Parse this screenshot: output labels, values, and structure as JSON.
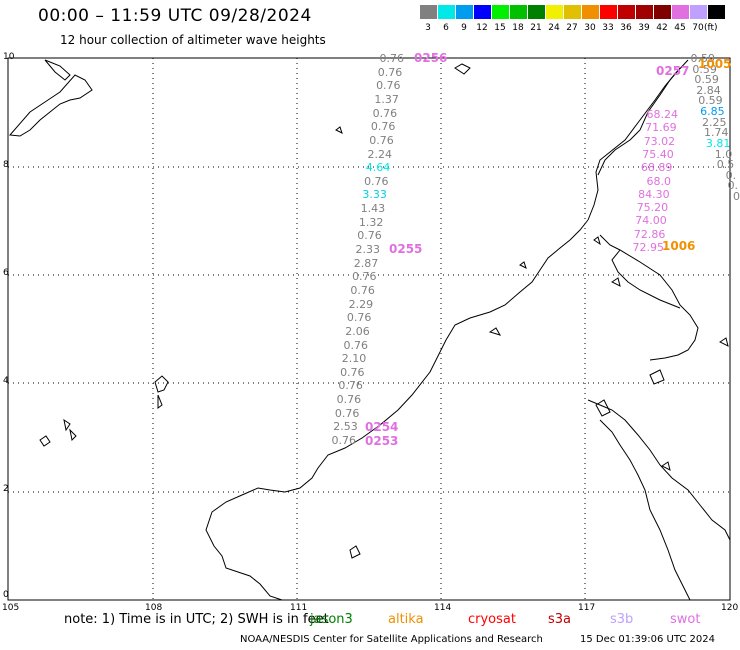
{
  "title": "00:00 – 11:59 UTC 09/28/2024",
  "subtitle": "12 hour collection of altimeter wave heights",
  "legend": {
    "unit": "(ft)",
    "bins": [
      {
        "label": "3",
        "color": "#808080"
      },
      {
        "label": "6",
        "color": "#00e8e8"
      },
      {
        "label": "9",
        "color": "#009cf0"
      },
      {
        "label": "12",
        "color": "#0000ff"
      },
      {
        "label": "15",
        "color": "#00f000"
      },
      {
        "label": "18",
        "color": "#00c000"
      },
      {
        "label": "21",
        "color": "#008000"
      },
      {
        "label": "24",
        "color": "#f0f000"
      },
      {
        "label": "27",
        "color": "#e0c000"
      },
      {
        "label": "30",
        "color": "#f09000"
      },
      {
        "label": "33",
        "color": "#ff0000"
      },
      {
        "label": "36",
        "color": "#c00000"
      },
      {
        "label": "39",
        "color": "#a00000"
      },
      {
        "label": "42",
        "color": "#800000"
      },
      {
        "label": "45",
        "color": "#e070e0"
      },
      {
        "label": "70",
        "color": "#c0a0ff"
      },
      {
        "label": "",
        "color": "#000000"
      }
    ]
  },
  "axes": {
    "x_ticks": [
      "105",
      "108",
      "111",
      "114",
      "117",
      "120"
    ],
    "y_ticks": [
      "0",
      "2",
      "4",
      "6",
      "8",
      "10"
    ]
  },
  "track_main": {
    "values": [
      {
        "v": "0.76",
        "c": "#808080"
      },
      {
        "v": "0.76",
        "c": "#808080"
      },
      {
        "v": "0.76",
        "c": "#808080"
      },
      {
        "v": "1.37",
        "c": "#808080"
      },
      {
        "v": "0.76",
        "c": "#808080"
      },
      {
        "v": "0.76",
        "c": "#808080"
      },
      {
        "v": "0.76",
        "c": "#808080"
      },
      {
        "v": "2.24",
        "c": "#808080"
      },
      {
        "v": "4.64",
        "c": "#00e8e8"
      },
      {
        "v": "0.76",
        "c": "#808080"
      },
      {
        "v": "3.33",
        "c": "#00d0e0"
      },
      {
        "v": "1.43",
        "c": "#808080"
      },
      {
        "v": "1.32",
        "c": "#808080"
      },
      {
        "v": "0.76",
        "c": "#808080"
      },
      {
        "v": "2.33",
        "c": "#808080"
      },
      {
        "v": "2.87",
        "c": "#808080"
      },
      {
        "v": "0.76",
        "c": "#808080"
      },
      {
        "v": "0.76",
        "c": "#808080"
      },
      {
        "v": "2.29",
        "c": "#808080"
      },
      {
        "v": "0.76",
        "c": "#808080"
      },
      {
        "v": "2.06",
        "c": "#808080"
      },
      {
        "v": "0.76",
        "c": "#808080"
      },
      {
        "v": "2.10",
        "c": "#808080"
      },
      {
        "v": "0.76",
        "c": "#808080"
      },
      {
        "v": "0.76",
        "c": "#808080"
      },
      {
        "v": "0.76",
        "c": "#808080"
      },
      {
        "v": "0.76",
        "c": "#808080"
      },
      {
        "v": "2.53",
        "c": "#808080"
      },
      {
        "v": "0.76",
        "c": "#808080"
      }
    ]
  },
  "track_east": {
    "values": [
      {
        "v": "68.24",
        "c": "#e070e0"
      },
      {
        "v": "71.69",
        "c": "#e070e0"
      },
      {
        "v": "73.02",
        "c": "#e070e0"
      },
      {
        "v": "75.40",
        "c": "#e070e0"
      },
      {
        "v": "68.89",
        "c": "#e070e0"
      },
      {
        "v": "68.0",
        "c": "#e070e0"
      },
      {
        "v": "84.30",
        "c": "#e070e0"
      },
      {
        "v": "75.20",
        "c": "#e070e0"
      },
      {
        "v": "74.00",
        "c": "#e070e0"
      },
      {
        "v": "72.86",
        "c": "#e070e0"
      },
      {
        "v": "72.95",
        "c": "#e070e0"
      }
    ]
  },
  "track_ne": {
    "values": [
      {
        "v": "0.59",
        "c": "#808080"
      },
      {
        "v": "0.59",
        "c": "#808080"
      },
      {
        "v": "0.59",
        "c": "#808080"
      },
      {
        "v": "2.84",
        "c": "#808080"
      },
      {
        "v": "0.59",
        "c": "#808080"
      },
      {
        "v": "6.85",
        "c": "#009cf0"
      },
      {
        "v": "2.25",
        "c": "#808080"
      },
      {
        "v": "1.74",
        "c": "#808080"
      },
      {
        "v": "3.81",
        "c": "#00e8e8"
      },
      {
        "v": "1.0",
        "c": "#808080"
      },
      {
        "v": "0.5",
        "c": "#808080"
      },
      {
        "v": "0.",
        "c": "#808080"
      },
      {
        "v": "0.",
        "c": "#808080"
      },
      {
        "v": "0",
        "c": "#808080"
      }
    ]
  },
  "pass_ids": [
    {
      "id": "0256",
      "c": "#e070e0"
    },
    {
      "id": "0255",
      "c": "#e070e0"
    },
    {
      "id": "0254",
      "c": "#e070e0"
    },
    {
      "id": "0253",
      "c": "#e070e0"
    },
    {
      "id": "1006",
      "c": "#f09000"
    },
    {
      "id": "1005",
      "c": "#f09000"
    },
    {
      "id": "0257",
      "c": "#e070e0"
    }
  ],
  "footer": {
    "note": "note:  1) Time is in UTC; 2) SWH is in feet",
    "satellites": [
      {
        "name": "jason3",
        "color": "#008000"
      },
      {
        "name": "altika",
        "color": "#f09000"
      },
      {
        "name": "cryosat",
        "color": "#ff0000"
      },
      {
        "name": "s3a",
        "color": "#c00000"
      },
      {
        "name": "s3b",
        "color": "#c0a0ff"
      },
      {
        "name": "swot",
        "color": "#e070e0"
      }
    ],
    "credit": "NOAA/NESDIS Center for Satellite Applications and Research",
    "timestamp": "15 Dec 01:39:06 UTC 2024"
  }
}
